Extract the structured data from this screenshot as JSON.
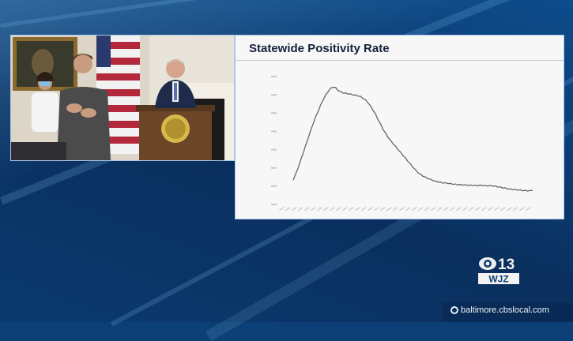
{
  "chart": {
    "title": "Statewide Positivity Rate"
  },
  "chart_data": {
    "type": "line",
    "title": "Statewide Positivity Rate",
    "xlabel": "",
    "ylabel": "",
    "series": [
      {
        "values": [
          5.0,
          6.2,
          7.5,
          9.0,
          10.5,
          12.0,
          13.5,
          15.0,
          16.5,
          17.8,
          19.0,
          20.2,
          21.3,
          22.2,
          23.0,
          23.6,
          23.9,
          23.7,
          23.2,
          22.9,
          22.7,
          22.6,
          22.5,
          22.4,
          22.3,
          22.2,
          22.1,
          21.9,
          21.6,
          21.2,
          20.7,
          20.0,
          19.2,
          18.3,
          17.3,
          16.3,
          15.3,
          14.5,
          13.7,
          13.0,
          12.4,
          11.8,
          11.2,
          10.6,
          10.0,
          9.4,
          8.8,
          8.2,
          7.6,
          7.0,
          6.5,
          6.1,
          5.8,
          5.5,
          5.3,
          5.1,
          4.9,
          4.7,
          4.6,
          4.5,
          4.4,
          4.35,
          4.3,
          4.2,
          4.15,
          4.1,
          4.05,
          4.0,
          4.0,
          3.95,
          3.9,
          3.9,
          3.9,
          3.85,
          3.85,
          3.9,
          3.85,
          3.8,
          3.8,
          3.8,
          3.75,
          3.7,
          3.6,
          3.5,
          3.4,
          3.3,
          3.2,
          3.1,
          3.05,
          3.0,
          2.95,
          2.9,
          2.85,
          2.8,
          2.8,
          2.8,
          2.9
        ]
      }
    ],
    "ylim": [
      0,
      26
    ],
    "grid": false,
    "colors": {
      "line": "#666666"
    }
  },
  "video": {
    "seal_text": "MARYLAND"
  },
  "branding": {
    "logo_number": "13",
    "logo_call": "WJZ",
    "logo_network": "CBS",
    "url": "baltimore.cbslocal.com"
  }
}
